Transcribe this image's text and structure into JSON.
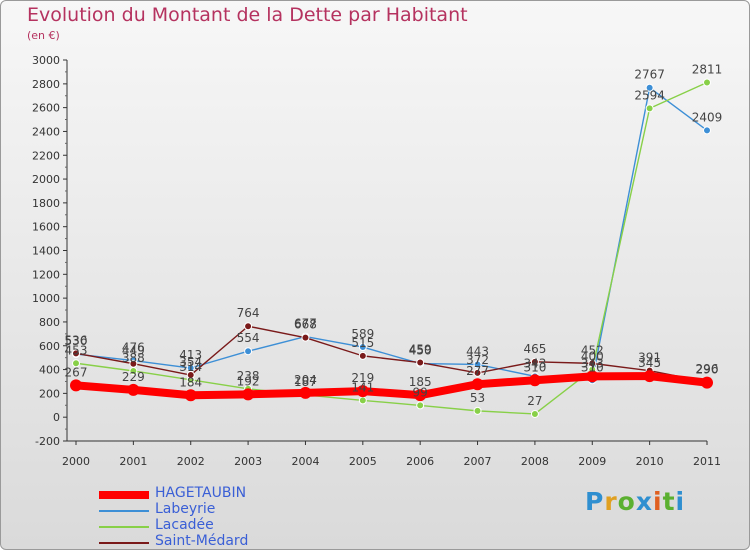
{
  "chart_data": {
    "type": "line",
    "title": "Evolution du Montant de la Dette par Habitant",
    "subtitle": "(en €)",
    "categories": [
      "2000",
      "2001",
      "2002",
      "2003",
      "2004",
      "2005",
      "2006",
      "2007",
      "2008",
      "2009",
      "2010",
      "2011"
    ],
    "ylim": [
      -200,
      3000
    ],
    "yticks": [
      -200,
      0,
      200,
      400,
      600,
      800,
      1000,
      1200,
      1400,
      1600,
      1800,
      2000,
      2200,
      2400,
      2600,
      2800,
      3000
    ],
    "grid": false,
    "legend_position": "bottom-left",
    "series": [
      {
        "name": "HAGETAUBIN",
        "color": "#ff0000",
        "values": [
          267,
          229,
          184,
          192,
          204,
          219,
          185,
          277,
          310,
          343,
          345,
          290
        ]
      },
      {
        "name": "Labeyrie",
        "color": "#3d8fd6",
        "values": [
          530,
          476,
          413,
          554,
          677,
          589,
          450,
          443,
          343,
          310,
          2767,
          2409
        ]
      },
      {
        "name": "Lacadée",
        "color": "#88d048",
        "values": [
          453,
          388,
          314,
          238,
          187,
          141,
          99,
          53,
          27,
          400,
          2594,
          2811
        ]
      },
      {
        "name": "Saint-Médard",
        "color": "#7a1a1a",
        "values": [
          536,
          449,
          354,
          764,
          668,
          515,
          459,
          372,
          465,
          452,
          391,
          296
        ]
      }
    ]
  },
  "branding": {
    "logo_letters": [
      "P",
      "r",
      "o",
      "x",
      "i",
      "t",
      "i"
    ]
  }
}
